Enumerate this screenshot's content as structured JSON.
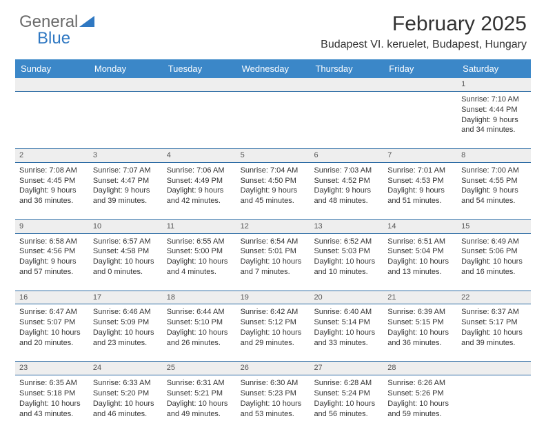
{
  "logo": {
    "text_general": "General",
    "text_blue": "Blue"
  },
  "title": "February 2025",
  "location": "Budapest VI. keruelet, Budapest, Hungary",
  "colors": {
    "header_bg": "#3b87c8",
    "header_text": "#ffffff",
    "row_divider": "#2a6aa3",
    "daynum_bg": "#eeeeee",
    "body_text": "#333333",
    "logo_blue": "#2f78c2",
    "logo_gray": "#6a6a6a",
    "background": "#ffffff"
  },
  "day_labels": [
    "Sunday",
    "Monday",
    "Tuesday",
    "Wednesday",
    "Thursday",
    "Friday",
    "Saturday"
  ],
  "weeks": [
    [
      null,
      null,
      null,
      null,
      null,
      null,
      {
        "n": "1",
        "sr": "7:10 AM",
        "ss": "4:44 PM",
        "dl": "9 hours and 34 minutes."
      }
    ],
    [
      {
        "n": "2",
        "sr": "7:08 AM",
        "ss": "4:45 PM",
        "dl": "9 hours and 36 minutes."
      },
      {
        "n": "3",
        "sr": "7:07 AM",
        "ss": "4:47 PM",
        "dl": "9 hours and 39 minutes."
      },
      {
        "n": "4",
        "sr": "7:06 AM",
        "ss": "4:49 PM",
        "dl": "9 hours and 42 minutes."
      },
      {
        "n": "5",
        "sr": "7:04 AM",
        "ss": "4:50 PM",
        "dl": "9 hours and 45 minutes."
      },
      {
        "n": "6",
        "sr": "7:03 AM",
        "ss": "4:52 PM",
        "dl": "9 hours and 48 minutes."
      },
      {
        "n": "7",
        "sr": "7:01 AM",
        "ss": "4:53 PM",
        "dl": "9 hours and 51 minutes."
      },
      {
        "n": "8",
        "sr": "7:00 AM",
        "ss": "4:55 PM",
        "dl": "9 hours and 54 minutes."
      }
    ],
    [
      {
        "n": "9",
        "sr": "6:58 AM",
        "ss": "4:56 PM",
        "dl": "9 hours and 57 minutes."
      },
      {
        "n": "10",
        "sr": "6:57 AM",
        "ss": "4:58 PM",
        "dl": "10 hours and 0 minutes."
      },
      {
        "n": "11",
        "sr": "6:55 AM",
        "ss": "5:00 PM",
        "dl": "10 hours and 4 minutes."
      },
      {
        "n": "12",
        "sr": "6:54 AM",
        "ss": "5:01 PM",
        "dl": "10 hours and 7 minutes."
      },
      {
        "n": "13",
        "sr": "6:52 AM",
        "ss": "5:03 PM",
        "dl": "10 hours and 10 minutes."
      },
      {
        "n": "14",
        "sr": "6:51 AM",
        "ss": "5:04 PM",
        "dl": "10 hours and 13 minutes."
      },
      {
        "n": "15",
        "sr": "6:49 AM",
        "ss": "5:06 PM",
        "dl": "10 hours and 16 minutes."
      }
    ],
    [
      {
        "n": "16",
        "sr": "6:47 AM",
        "ss": "5:07 PM",
        "dl": "10 hours and 20 minutes."
      },
      {
        "n": "17",
        "sr": "6:46 AM",
        "ss": "5:09 PM",
        "dl": "10 hours and 23 minutes."
      },
      {
        "n": "18",
        "sr": "6:44 AM",
        "ss": "5:10 PM",
        "dl": "10 hours and 26 minutes."
      },
      {
        "n": "19",
        "sr": "6:42 AM",
        "ss": "5:12 PM",
        "dl": "10 hours and 29 minutes."
      },
      {
        "n": "20",
        "sr": "6:40 AM",
        "ss": "5:14 PM",
        "dl": "10 hours and 33 minutes."
      },
      {
        "n": "21",
        "sr": "6:39 AM",
        "ss": "5:15 PM",
        "dl": "10 hours and 36 minutes."
      },
      {
        "n": "22",
        "sr": "6:37 AM",
        "ss": "5:17 PM",
        "dl": "10 hours and 39 minutes."
      }
    ],
    [
      {
        "n": "23",
        "sr": "6:35 AM",
        "ss": "5:18 PM",
        "dl": "10 hours and 43 minutes."
      },
      {
        "n": "24",
        "sr": "6:33 AM",
        "ss": "5:20 PM",
        "dl": "10 hours and 46 minutes."
      },
      {
        "n": "25",
        "sr": "6:31 AM",
        "ss": "5:21 PM",
        "dl": "10 hours and 49 minutes."
      },
      {
        "n": "26",
        "sr": "6:30 AM",
        "ss": "5:23 PM",
        "dl": "10 hours and 53 minutes."
      },
      {
        "n": "27",
        "sr": "6:28 AM",
        "ss": "5:24 PM",
        "dl": "10 hours and 56 minutes."
      },
      {
        "n": "28",
        "sr": "6:26 AM",
        "ss": "5:26 PM",
        "dl": "10 hours and 59 minutes."
      },
      null
    ]
  ],
  "labels": {
    "sunrise": "Sunrise:",
    "sunset": "Sunset:",
    "daylight": "Daylight:"
  }
}
